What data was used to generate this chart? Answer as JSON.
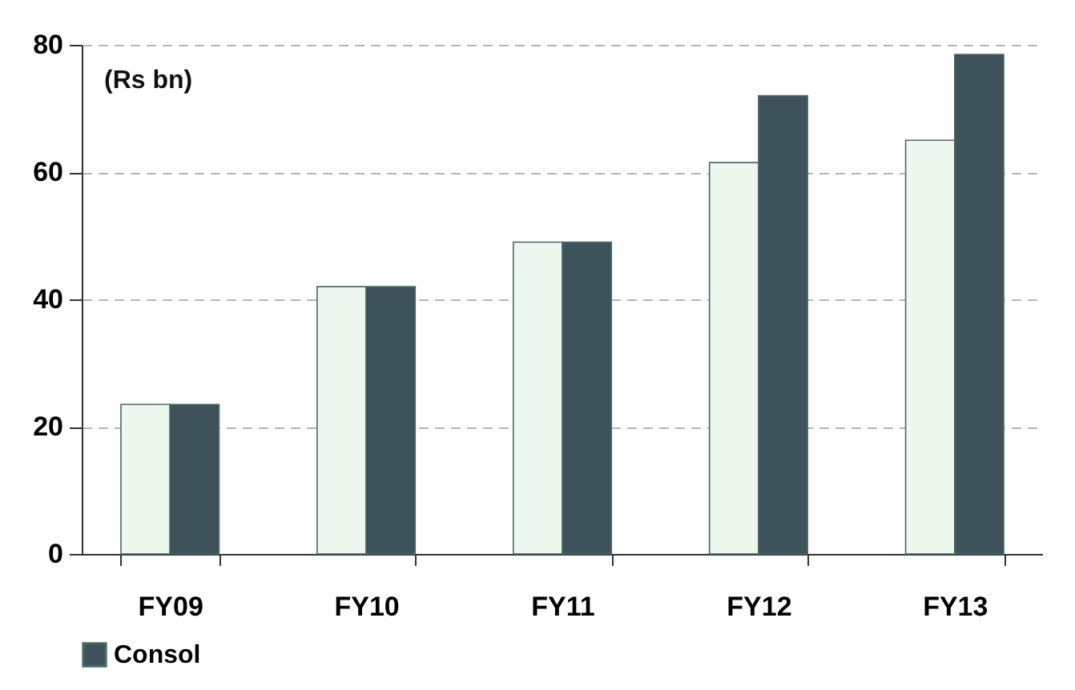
{
  "chart_data": {
    "type": "bar",
    "annotations": [
      "(Rs bn)"
    ],
    "categories": [
      "FY09",
      "FY10",
      "FY11",
      "FY12",
      "FY13"
    ],
    "series": [
      {
        "color": "#eef7ee",
        "values": [
          23.5,
          42,
          49,
          61.5,
          65
        ]
      },
      {
        "name": "Consol",
        "color": "#3e525c",
        "values": [
          23.5,
          42,
          49,
          72,
          78.5
        ]
      }
    ],
    "ylim": [
      0,
      80
    ],
    "yticks": [
      0,
      20,
      40,
      60,
      80
    ],
    "grid": "y",
    "legend": "bottom"
  }
}
